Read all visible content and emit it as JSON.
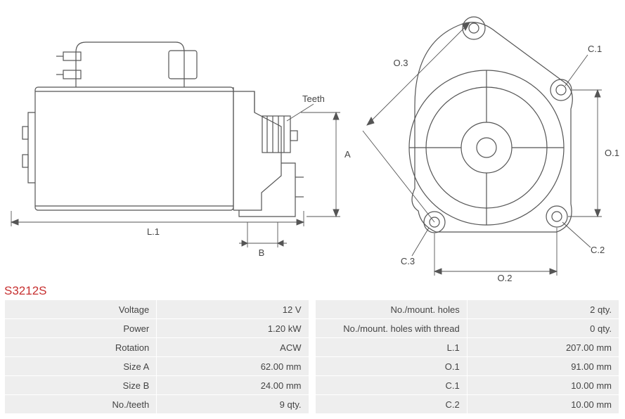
{
  "part_number": "S3212S",
  "colors": {
    "line": "#555555",
    "text": "#555555",
    "part_number": "#c73030",
    "table_bg": "#eeeeee",
    "table_text": "#444444",
    "border": "#ffffff",
    "background": "#ffffff"
  },
  "stroke_width": 1.2,
  "diagram": {
    "side_view": {
      "labels": {
        "teeth": "Teeth",
        "A": "A",
        "B": "B",
        "L1": "L.1"
      }
    },
    "front_view": {
      "labels": {
        "O1": "O.1",
        "O2": "O.2",
        "O3": "O.3",
        "C1": "C.1",
        "C2": "C.2",
        "C3": "C.3"
      }
    }
  },
  "specs_left": {
    "columns": [
      "label",
      "value"
    ],
    "rows": [
      [
        "Voltage",
        "12 V"
      ],
      [
        "Power",
        "1.20 kW"
      ],
      [
        "Rotation",
        "ACW"
      ],
      [
        "Size A",
        "62.00 mm"
      ],
      [
        "Size B",
        "24.00 mm"
      ],
      [
        "No./teeth",
        "9 qty."
      ]
    ]
  },
  "specs_right": {
    "columns": [
      "label",
      "value"
    ],
    "rows": [
      [
        "No./mount. holes",
        "2 qty."
      ],
      [
        "No./mount. holes with thread",
        "0 qty."
      ],
      [
        "L.1",
        "207.00 mm"
      ],
      [
        "O.1",
        "91.00 mm"
      ],
      [
        "C.1",
        "10.00 mm"
      ],
      [
        "C.2",
        "10.00 mm"
      ]
    ]
  }
}
